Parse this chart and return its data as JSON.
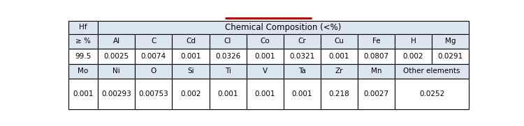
{
  "title": "Chemical Composition (<%)",
  "red_line_color": "#c00000",
  "header_bg": "#dce6f1",
  "cell_bg": "#ffffff",
  "border_color": "#000000",
  "hf_label_top": "Hf",
  "hf_label_bot": "≥ %",
  "row1_elements": [
    "Al",
    "C",
    "Cd",
    "Cl",
    "Co",
    "Cr",
    "Cu",
    "Fe",
    "H",
    "Mg"
  ],
  "row1_values": [
    "0.0025",
    "0.0074",
    "0.001",
    "0.0326",
    "0.001",
    "0.0321",
    "0.001",
    "0.0807",
    "0.002",
    "0.0291"
  ],
  "hf_value": "99.5",
  "row2_elements": [
    "Mo",
    "Ni",
    "O",
    "Si",
    "Ti",
    "V",
    "Ta",
    "Zr",
    "Mn"
  ],
  "row2_last_element": "Other elements",
  "row2_values": [
    "0.001",
    "0.00293",
    "0.00753",
    "0.002",
    "0.001",
    "0.001",
    "0.001",
    "0.218",
    "0.0027"
  ],
  "row2_last_value": "0.0252",
  "font_size": 7.5,
  "title_font_size": 8.5,
  "fig_width": 7.5,
  "fig_height": 1.81,
  "dpi": 100
}
